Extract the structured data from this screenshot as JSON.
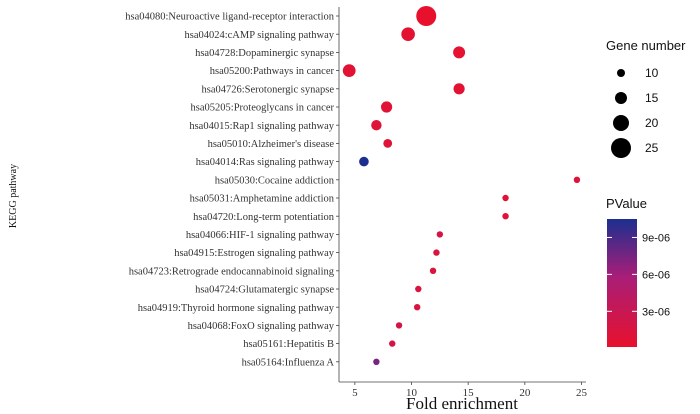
{
  "chart_data": {
    "type": "scatter",
    "xlabel": "Fold enrichment",
    "ylabel": "KEGG pathway",
    "xlim": [
      3.6,
      25.4
    ],
    "xticks": [
      5,
      10,
      15,
      20,
      25
    ],
    "grid": false,
    "points": [
      {
        "category": "hsa04080:Neuroactive ligand-receptor interaction",
        "fold_enrichment": 11.3,
        "gene_number": 25,
        "pvalue": 1e-07
      },
      {
        "category": "hsa04024:cAMP signaling pathway",
        "fold_enrichment": 9.7,
        "gene_number": 17,
        "pvalue": 5e-07
      },
      {
        "category": "hsa04728:Dopaminergic synapse",
        "fold_enrichment": 14.2,
        "gene_number": 15,
        "pvalue": 4e-07
      },
      {
        "category": "hsa05200:Pathways in cancer",
        "fold_enrichment": 4.5,
        "gene_number": 16,
        "pvalue": 6e-07
      },
      {
        "category": "hsa04726:Serotonergic synapse",
        "fold_enrichment": 14.2,
        "gene_number": 14,
        "pvalue": 5e-07
      },
      {
        "category": "hsa05205:Proteoglycans in cancer",
        "fold_enrichment": 7.8,
        "gene_number": 14,
        "pvalue": 8e-07
      },
      {
        "category": "hsa04015:Rap1 signaling pathway",
        "fold_enrichment": 6.9,
        "gene_number": 13,
        "pvalue": 1e-06
      },
      {
        "category": "hsa05010:Alzheimer's disease",
        "fold_enrichment": 7.9,
        "gene_number": 11,
        "pvalue": 1e-06
      },
      {
        "category": "hsa04014:Ras signaling pathway",
        "fold_enrichment": 5.8,
        "gene_number": 12,
        "pvalue": 1.05e-05
      },
      {
        "category": "hsa05030:Cocaine addiction",
        "fold_enrichment": 24.6,
        "gene_number": 8,
        "pvalue": 1e-06
      },
      {
        "category": "hsa05031:Amphetamine addiction",
        "fold_enrichment": 18.3,
        "gene_number": 8,
        "pvalue": 1e-06
      },
      {
        "category": "hsa04720:Long-term potentiation",
        "fold_enrichment": 18.3,
        "gene_number": 8,
        "pvalue": 1e-06
      },
      {
        "category": "hsa04066:HIF-1 signaling pathway",
        "fold_enrichment": 12.5,
        "gene_number": 8,
        "pvalue": 2e-06
      },
      {
        "category": "hsa04915:Estrogen signaling pathway",
        "fold_enrichment": 12.2,
        "gene_number": 8,
        "pvalue": 1.5e-06
      },
      {
        "category": "hsa04723:Retrograde endocannabinoid signaling",
        "fold_enrichment": 11.9,
        "gene_number": 8,
        "pvalue": 1.5e-06
      },
      {
        "category": "hsa04724:Glutamatergic synapse",
        "fold_enrichment": 10.6,
        "gene_number": 8,
        "pvalue": 1.5e-06
      },
      {
        "category": "hsa04919:Thyroid hormone signaling pathway",
        "fold_enrichment": 10.5,
        "gene_number": 8,
        "pvalue": 1.5e-06
      },
      {
        "category": "hsa04068:FoxO signaling pathway",
        "fold_enrichment": 8.9,
        "gene_number": 8,
        "pvalue": 2e-06
      },
      {
        "category": "hsa05161:Hepatitis B",
        "fold_enrichment": 8.3,
        "gene_number": 8,
        "pvalue": 2e-06
      },
      {
        "category": "hsa05164:Influenza A",
        "fold_enrichment": 6.9,
        "gene_number": 8,
        "pvalue": 7.5e-06
      }
    ],
    "legend_size": {
      "title": "Gene number",
      "values": [
        10,
        15,
        20,
        25
      ],
      "labels": [
        "10",
        "15",
        "20",
        "25"
      ],
      "placement": "top-right"
    },
    "legend_color": {
      "title": "PValue",
      "min": 1e-07,
      "max": 1.05e-05,
      "ticks": [
        3e-06,
        6e-06,
        9e-06
      ],
      "tick_labels": [
        "3e-06",
        "6e-06",
        "9e-06"
      ],
      "low_color": "#e8112d",
      "high_color": "#1c2f8f",
      "placement": "right"
    }
  }
}
